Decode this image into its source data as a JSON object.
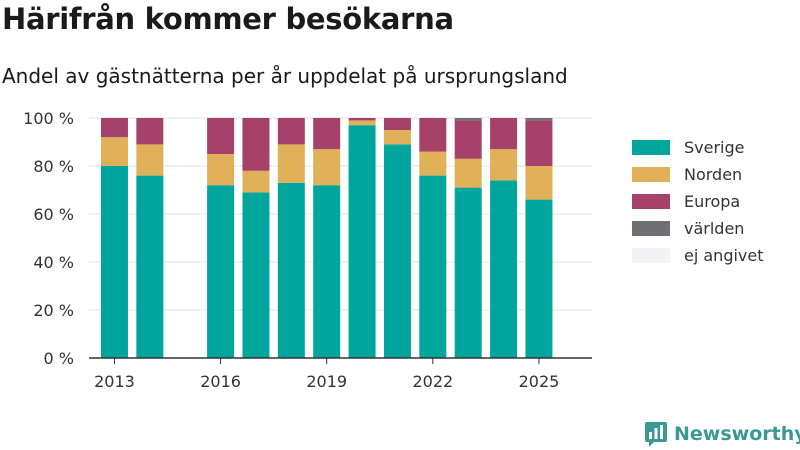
{
  "title": "Härifrån kommer besökarna",
  "subtitle": "Andel av gästnätterna per år uppdelat på ursprungsland",
  "brand": {
    "name": "Newsworthy"
  },
  "colors": {
    "Sverige": "#00a69c",
    "Norden": "#e1b15a",
    "Europa": "#a64269",
    "världen": "#707074",
    "ej angivet": "#f3f3f5"
  },
  "chart_data": {
    "type": "bar",
    "stacked": true,
    "categories": [
      2013,
      2014,
      2016,
      2017,
      2018,
      2019,
      2020,
      2021,
      2022,
      2023,
      2024,
      2025
    ],
    "series": [
      {
        "name": "Sverige",
        "values": [
          80,
          76,
          72,
          69,
          73,
          72,
          97,
          89,
          76,
          71,
          74,
          66
        ]
      },
      {
        "name": "Norden",
        "values": [
          12,
          13,
          13,
          9,
          16,
          15,
          2,
          6,
          10,
          12,
          13,
          14
        ]
      },
      {
        "name": "Europa",
        "values": [
          8,
          11,
          15,
          22,
          11,
          13,
          1,
          5,
          14,
          16,
          13,
          19
        ]
      },
      {
        "name": "världen",
        "values": [
          0,
          0,
          0,
          0,
          0,
          0,
          0,
          0,
          0,
          1,
          0,
          1
        ]
      },
      {
        "name": "ej angivet",
        "values": [
          0,
          0,
          0,
          0,
          0,
          0,
          0,
          0,
          0,
          0,
          0,
          0
        ]
      }
    ],
    "ylim": [
      0,
      100
    ],
    "yticks": [
      0,
      20,
      40,
      60,
      80,
      100
    ],
    "ytick_labels": [
      "0 %",
      "20 %",
      "40 %",
      "60 %",
      "80 %",
      "100 %"
    ],
    "xticks": [
      "2013",
      "2016",
      "2019",
      "2022",
      "2025"
    ],
    "xlabel": "",
    "ylabel": "",
    "grid": true,
    "legend": "right"
  }
}
